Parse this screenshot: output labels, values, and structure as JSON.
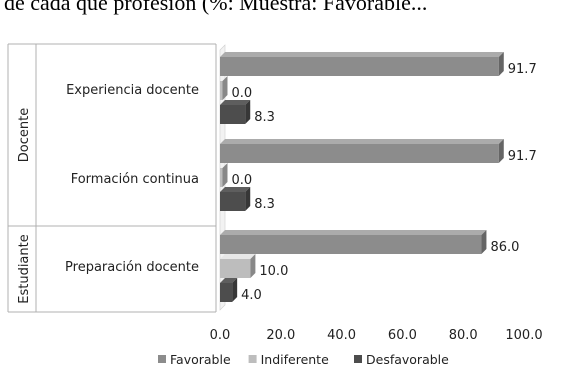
{
  "page": {
    "caption_fragment": "de cada que profesión (%: Muestra: Favorable..."
  },
  "chart_data": {
    "type": "bar",
    "orientation": "horizontal",
    "title": "",
    "xlabel": "",
    "ylabel": "",
    "xlim": [
      0,
      100
    ],
    "x_ticks": [
      "0.0",
      "20.0",
      "40.0",
      "60.0",
      "80.0",
      "100.0"
    ],
    "groups": [
      {
        "label": "Docente",
        "categories": [
          "Experiencia docente",
          "Formación continua"
        ]
      },
      {
        "label": "Estudiante",
        "categories": [
          "Preparación docente"
        ]
      }
    ],
    "categories": [
      "Experiencia docente",
      "Formación continua",
      "Preparación docente"
    ],
    "series": [
      {
        "name": "Favorable",
        "color": "#8c8c8c",
        "values": [
          91.7,
          91.7,
          86.0
        ],
        "labels": [
          "91.7",
          "91.7",
          "86.0"
        ]
      },
      {
        "name": "Indiferente",
        "color": "#bdbdbd",
        "values": [
          0.0,
          0.0,
          10.0
        ],
        "labels": [
          "0.0",
          "0.0",
          "10.0"
        ]
      },
      {
        "name": "Desfavorable",
        "color": "#4d4d4d",
        "values": [
          8.3,
          8.3,
          4.0
        ],
        "labels": [
          "8.3",
          "8.3",
          "4.0"
        ]
      }
    ],
    "legend_position": "bottom",
    "grid": false
  }
}
